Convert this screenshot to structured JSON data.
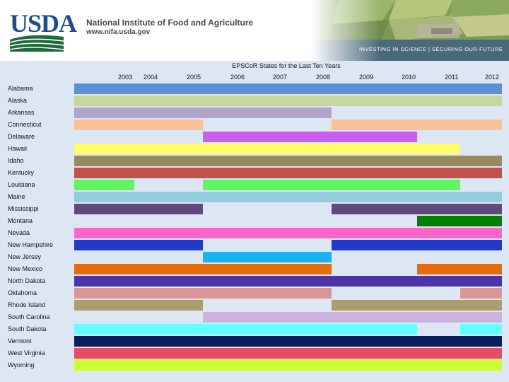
{
  "header": {
    "logo_text": "USDA",
    "org_name": "National Institute of Food and Agriculture",
    "org_url": "www.nifa.usda.gov",
    "tagline": "INVESTING IN SCIENCE | SECURING OUR FUTURE"
  },
  "chart_data": {
    "type": "bar",
    "title": "EPSCoR States for the Last Ten Years",
    "years": [
      "2003",
      "2004",
      "2005",
      "2006",
      "2007",
      "2008",
      "2009",
      "2010",
      "2011",
      "2012"
    ],
    "grid": false,
    "legend": "none",
    "states": [
      {
        "name": "Alabama",
        "color": "#5b8fd6",
        "years": [
          2003,
          2004,
          2005,
          2006,
          2007,
          2008,
          2009,
          2010,
          2011,
          2012
        ]
      },
      {
        "name": "Alaska",
        "color": "#c5d89c",
        "years": [
          2003,
          2004,
          2005,
          2006,
          2007,
          2008,
          2009,
          2010,
          2011,
          2012
        ]
      },
      {
        "name": "Arkansas",
        "color": "#b3a2c9",
        "years": [
          2003,
          2004,
          2005,
          2006,
          2007,
          2008
        ]
      },
      {
        "name": "Connecticut",
        "color": "#f9c198",
        "years": [
          2003,
          2004,
          2005,
          2009,
          2010,
          2011,
          2012
        ]
      },
      {
        "name": "Delaware",
        "color": "#c85ff0",
        "years": [
          2006,
          2007,
          2008,
          2009,
          2010
        ]
      },
      {
        "name": "Hawaii",
        "color": "#ffff66",
        "years": [
          2003,
          2004,
          2005,
          2006,
          2007,
          2008,
          2009,
          2010,
          2011
        ]
      },
      {
        "name": "Idaho",
        "color": "#978a5b",
        "years": [
          2003,
          2004,
          2005,
          2006,
          2007,
          2008,
          2009,
          2010,
          2011,
          2012
        ]
      },
      {
        "name": "Kentucky",
        "color": "#c0504d",
        "years": [
          2003,
          2004,
          2005,
          2006,
          2007,
          2008,
          2009,
          2010,
          2011,
          2012
        ]
      },
      {
        "name": "Louisiana",
        "color": "#5ff55f",
        "years": [
          2003,
          2006,
          2007,
          2008,
          2009,
          2010,
          2011
        ]
      },
      {
        "name": "Maine",
        "color": "#93cddd",
        "years": [
          2003,
          2004,
          2005,
          2006,
          2007,
          2008,
          2009,
          2010,
          2011,
          2012
        ]
      },
      {
        "name": "Mississippi",
        "color": "#604a7b",
        "years": [
          2003,
          2004,
          2005,
          2009,
          2010,
          2011,
          2012
        ]
      },
      {
        "name": "Montana",
        "color": "#008000",
        "years": [
          2011,
          2012
        ]
      },
      {
        "name": "Nevada",
        "color": "#fc66cc",
        "years": [
          2003,
          2004,
          2005,
          2006,
          2007,
          2008,
          2009,
          2010,
          2011,
          2012
        ]
      },
      {
        "name": "New Hampshire",
        "color": "#1f3bc7",
        "years": [
          2003,
          2004,
          2005,
          2009,
          2010,
          2011,
          2012
        ]
      },
      {
        "name": "New Jersey",
        "color": "#1ab2ef",
        "years": [
          2006,
          2007,
          2008
        ]
      },
      {
        "name": "New Mexico",
        "color": "#e46c0a",
        "years": [
          2003,
          2004,
          2005,
          2006,
          2007,
          2008,
          2011,
          2012
        ]
      },
      {
        "name": "North Dakota",
        "color": "#4b33a8",
        "years": [
          2003,
          2004,
          2005,
          2006,
          2007,
          2008,
          2009,
          2010,
          2011,
          2012
        ]
      },
      {
        "name": "Oklahoma",
        "color": "#d99694",
        "years": [
          2003,
          2004,
          2005,
          2006,
          2007,
          2008,
          2012
        ]
      },
      {
        "name": "Rhode Island",
        "color": "#aa9e70",
        "years": [
          2003,
          2004,
          2005,
          2009,
          2010,
          2011,
          2012
        ]
      },
      {
        "name": "South Carolina",
        "color": "#cbb2e0",
        "years": [
          2006,
          2007,
          2008,
          2009,
          2010,
          2011,
          2012
        ]
      },
      {
        "name": "South Dakota",
        "color": "#66ffff",
        "years": [
          2003,
          2004,
          2005,
          2006,
          2007,
          2008,
          2009,
          2010,
          2012
        ]
      },
      {
        "name": "Vermont",
        "color": "#0a1e5c",
        "years": [
          2003,
          2004,
          2005,
          2006,
          2007,
          2008,
          2009,
          2010,
          2011,
          2012
        ]
      },
      {
        "name": "West Virginia",
        "color": "#e84c62",
        "years": [
          2003,
          2004,
          2005,
          2006,
          2007,
          2008,
          2009,
          2010,
          2011,
          2012
        ]
      },
      {
        "name": "Wyoming",
        "color": "#ccff33",
        "years": [
          2003,
          2004,
          2005,
          2006,
          2007,
          2008,
          2009,
          2010,
          2011,
          2012
        ]
      }
    ]
  }
}
